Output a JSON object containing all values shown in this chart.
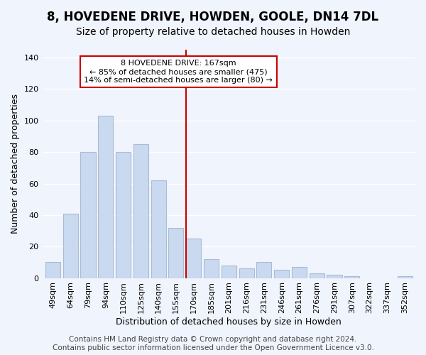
{
  "title": "8, HOVEDENE DRIVE, HOWDEN, GOOLE, DN14 7DL",
  "subtitle": "Size of property relative to detached houses in Howden",
  "xlabel": "Distribution of detached houses by size in Howden",
  "ylabel": "Number of detached properties",
  "bar_labels": [
    "49sqm",
    "64sqm",
    "79sqm",
    "94sqm",
    "110sqm",
    "125sqm",
    "140sqm",
    "155sqm",
    "170sqm",
    "185sqm",
    "201sqm",
    "216sqm",
    "231sqm",
    "246sqm",
    "261sqm",
    "276sqm",
    "291sqm",
    "307sqm",
    "322sqm",
    "337sqm",
    "352sqm"
  ],
  "bar_values": [
    10,
    41,
    80,
    103,
    80,
    85,
    62,
    32,
    25,
    12,
    8,
    6,
    10,
    5,
    7,
    3,
    2,
    1,
    0,
    0,
    1
  ],
  "bar_color": "#c8d9f0",
  "bar_edge_color": "#aabbd4",
  "vline_color": "#cc0000",
  "ylim": [
    0,
    145
  ],
  "yticks": [
    0,
    20,
    40,
    60,
    80,
    100,
    120,
    140
  ],
  "annotation_title": "8 HOVEDENE DRIVE: 167sqm",
  "annotation_line1": "← 85% of detached houses are smaller (475)",
  "annotation_line2": "14% of semi-detached houses are larger (80) →",
  "annotation_box_color": "#ffffff",
  "annotation_box_edge": "#cc0000",
  "footer1": "Contains HM Land Registry data © Crown copyright and database right 2024.",
  "footer2": "Contains public sector information licensed under the Open Government Licence v3.0.",
  "background_color": "#f0f4fc",
  "grid_color": "#ffffff",
  "title_fontsize": 12,
  "subtitle_fontsize": 10,
  "tick_fontsize": 8,
  "footer_fontsize": 7.5
}
